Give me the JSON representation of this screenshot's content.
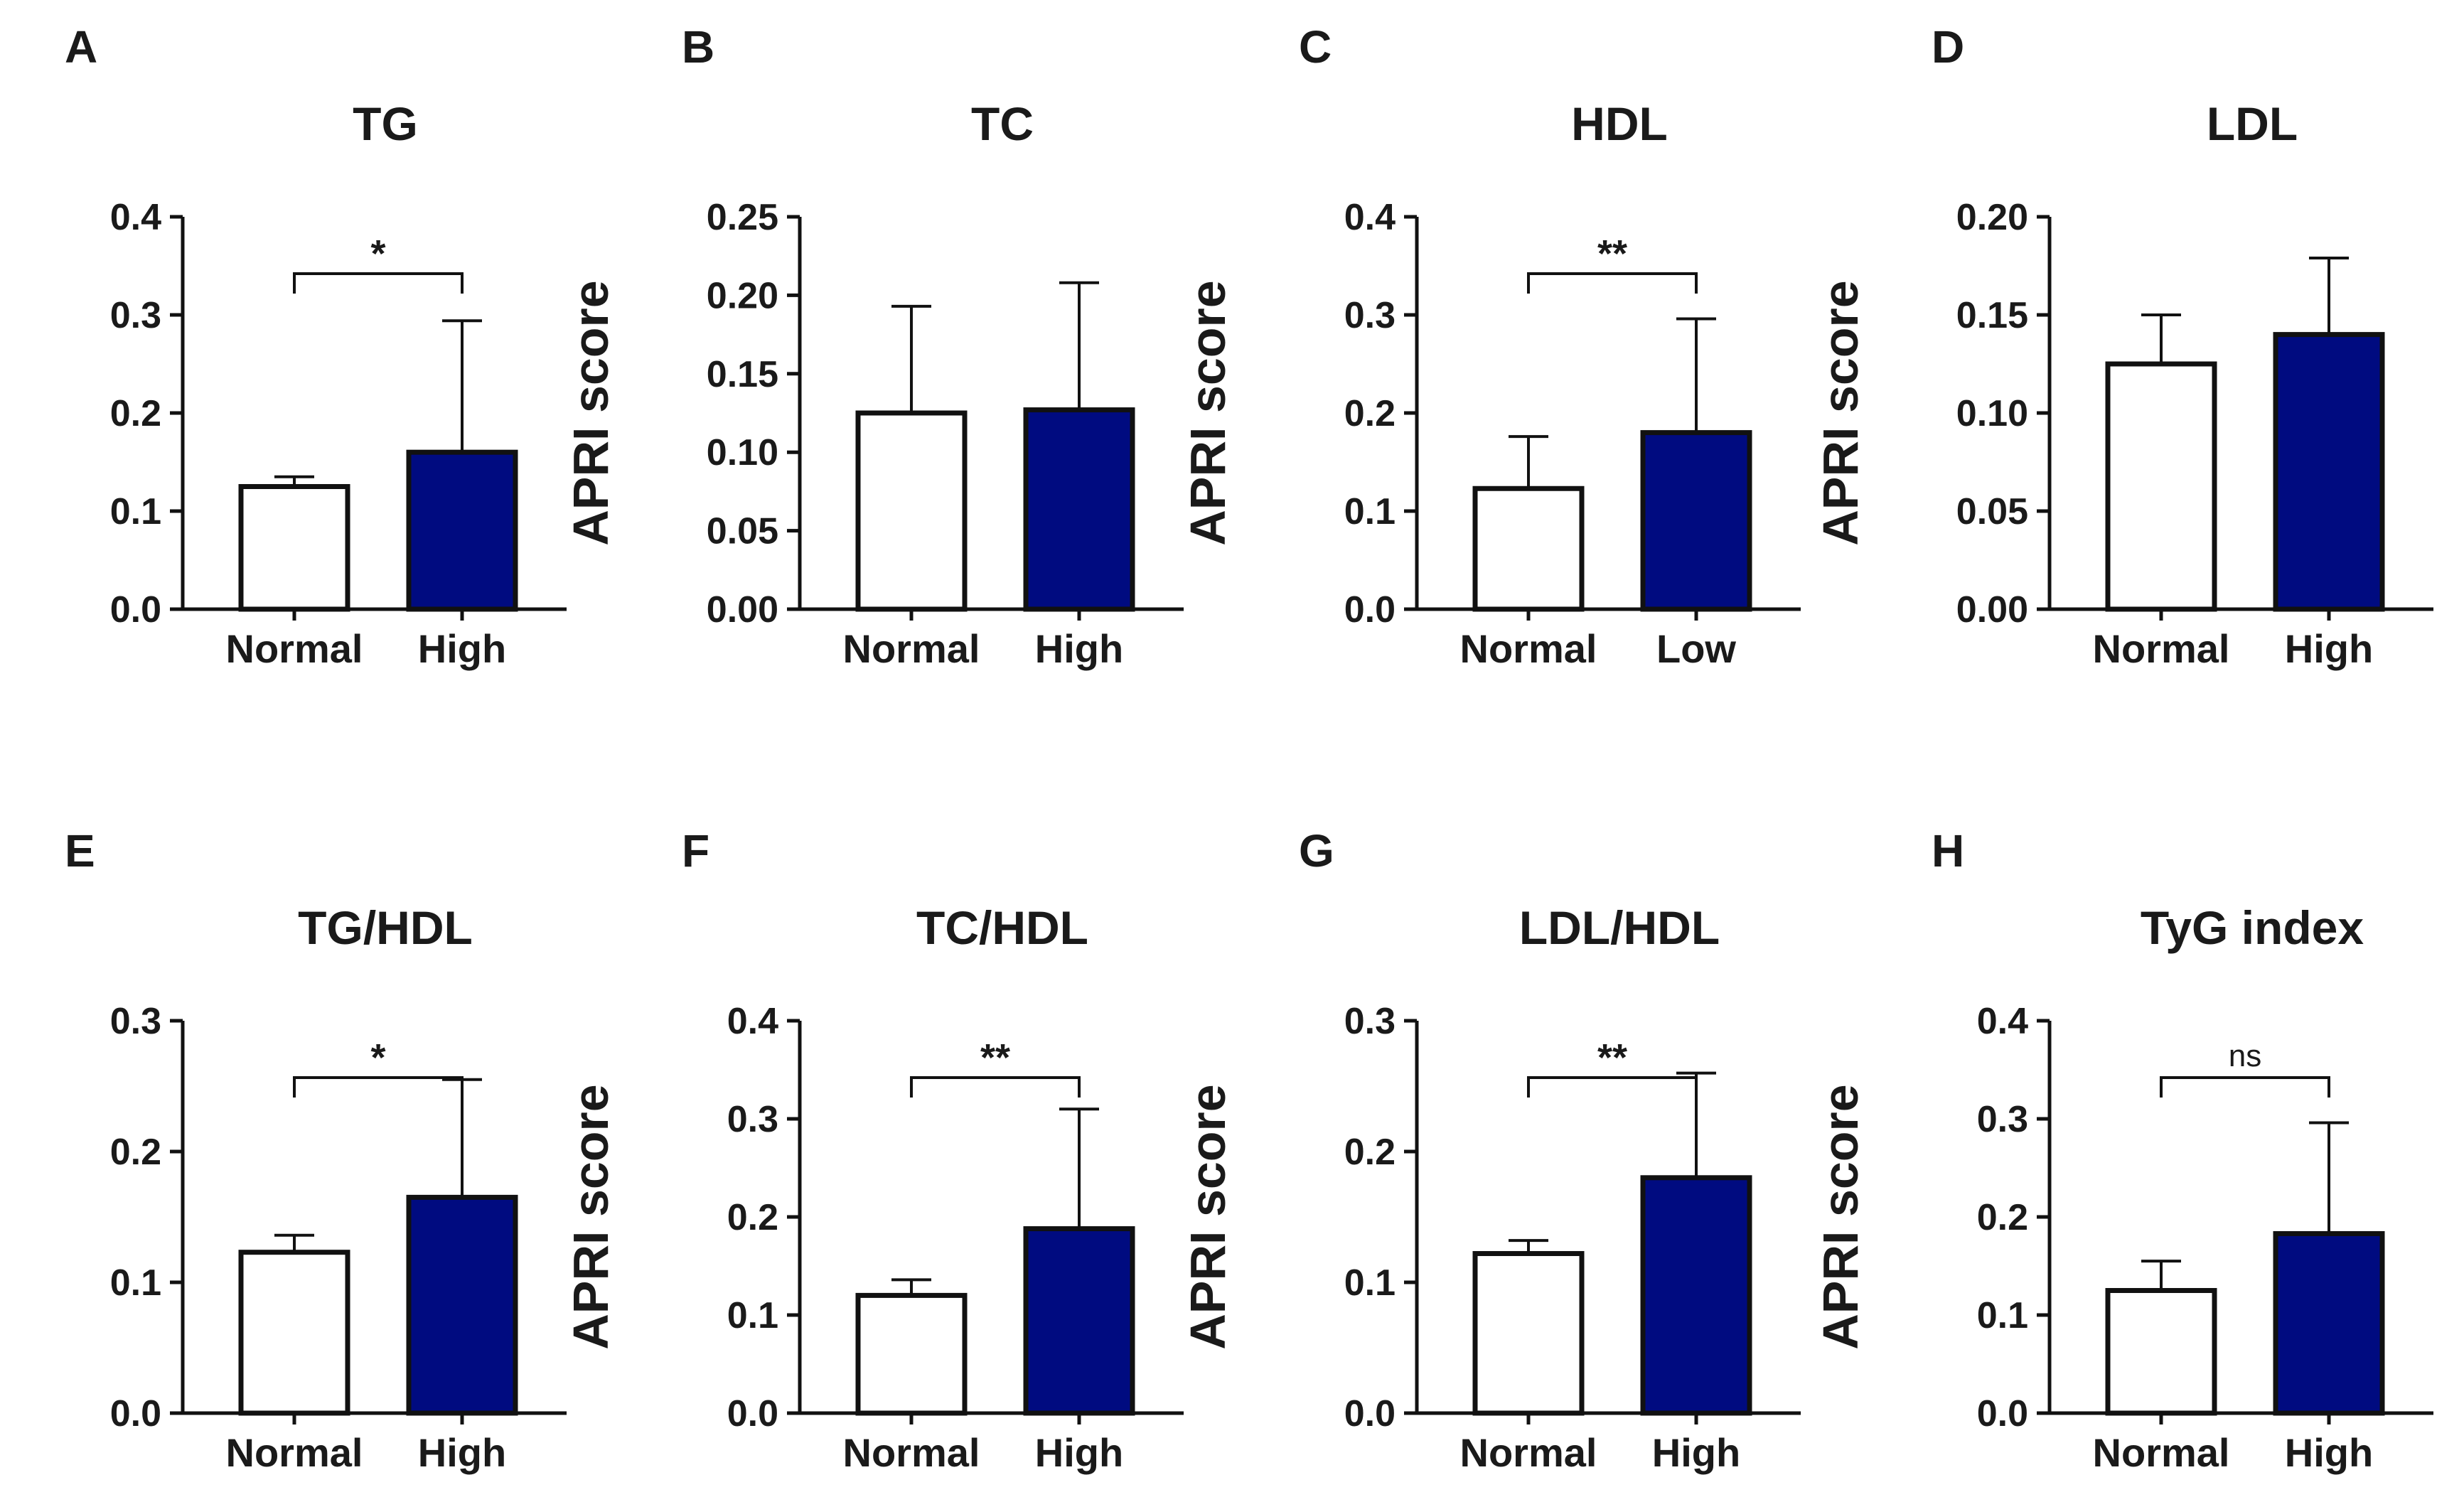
{
  "colors": {
    "normal_fill": "#ffffff",
    "high_fill": "#000b80",
    "stroke": "#111111"
  },
  "chart_data": [
    {
      "type": "bar",
      "panel": "A",
      "title": "TG",
      "ylabel": "APRI score",
      "categories": [
        "Normal",
        "High"
      ],
      "values": [
        0.125,
        0.16
      ],
      "errors": [
        0.01,
        0.134
      ],
      "ylim": [
        0,
        0.4
      ],
      "yticks": [
        "0.0",
        "0.1",
        "0.2",
        "0.3",
        "0.4"
      ],
      "significance": "*"
    },
    {
      "type": "bar",
      "panel": "B",
      "title": "TC",
      "ylabel": "APRI score",
      "categories": [
        "Normal",
        "High"
      ],
      "values": [
        0.125,
        0.127
      ],
      "errors": [
        0.068,
        0.081
      ],
      "ylim": [
        0,
        0.25
      ],
      "yticks": [
        "0.00",
        "0.05",
        "0.10",
        "0.15",
        "0.20",
        "0.25"
      ],
      "significance": ""
    },
    {
      "type": "bar",
      "panel": "C",
      "title": "HDL",
      "ylabel": "APRI score",
      "categories": [
        "Normal",
        "Low"
      ],
      "values": [
        0.123,
        0.18
      ],
      "errors": [
        0.053,
        0.116
      ],
      "ylim": [
        0,
        0.4
      ],
      "yticks": [
        "0.0",
        "0.1",
        "0.2",
        "0.3",
        "0.4"
      ],
      "significance": "**"
    },
    {
      "type": "bar",
      "panel": "D",
      "title": "LDL",
      "ylabel": "APRI score",
      "categories": [
        "Normal",
        "High"
      ],
      "values": [
        0.125,
        0.14
      ],
      "errors": [
        0.025,
        0.039
      ],
      "ylim": [
        0,
        0.2
      ],
      "yticks": [
        "0.00",
        "0.05",
        "0.10",
        "0.15",
        "0.20"
      ],
      "significance": ""
    },
    {
      "type": "bar",
      "panel": "E",
      "title": "TG/HDL",
      "ylabel": "APRI score",
      "categories": [
        "Normal",
        "High"
      ],
      "values": [
        0.123,
        0.165
      ],
      "errors": [
        0.013,
        0.09
      ],
      "ylim": [
        0,
        0.3
      ],
      "yticks": [
        "0.0",
        "0.1",
        "0.2",
        "0.3"
      ],
      "significance": "*"
    },
    {
      "type": "bar",
      "panel": "F",
      "title": "TC/HDL",
      "ylabel": "APRI score",
      "categories": [
        "Normal",
        "High"
      ],
      "values": [
        0.12,
        0.188
      ],
      "errors": [
        0.016,
        0.122
      ],
      "ylim": [
        0,
        0.4
      ],
      "yticks": [
        "0.0",
        "0.1",
        "0.2",
        "0.3",
        "0.4"
      ],
      "significance": "**"
    },
    {
      "type": "bar",
      "panel": "G",
      "title": "LDL/HDL",
      "ylabel": "APRI score",
      "categories": [
        "Normal",
        "High"
      ],
      "values": [
        0.122,
        0.18
      ],
      "errors": [
        0.01,
        0.08
      ],
      "ylim": [
        0,
        0.3
      ],
      "yticks": [
        "0.0",
        "0.1",
        "0.2",
        "0.3"
      ],
      "significance": "**"
    },
    {
      "type": "bar",
      "panel": "H",
      "title": "TyG index",
      "ylabel": "APRI score",
      "categories": [
        "Normal",
        "High"
      ],
      "values": [
        0.125,
        0.183
      ],
      "errors": [
        0.03,
        0.113
      ],
      "ylim": [
        0,
        0.4
      ],
      "yticks": [
        "0.0",
        "0.1",
        "0.2",
        "0.3",
        "0.4"
      ],
      "significance": "ns"
    }
  ]
}
